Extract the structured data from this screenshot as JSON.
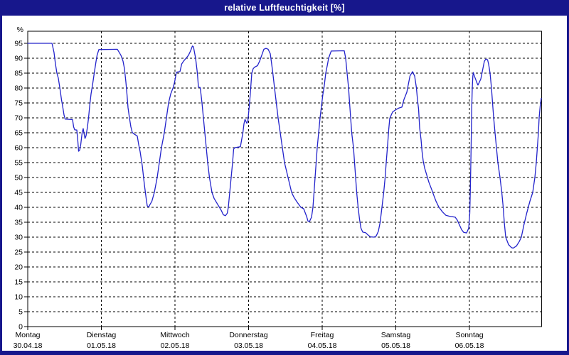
{
  "window": {
    "title": "relative Luftfeuchtigkeit [%]"
  },
  "colors": {
    "chrome": "#17178c",
    "title_text": "#ffffff",
    "plot_background": "#ffffff",
    "grid": "#000000",
    "axis_text": "#000000",
    "line": "#2323cb"
  },
  "chart_data": {
    "type": "line",
    "title": "relative Luftfeuchtigkeit [%]",
    "ylabel": "%",
    "y_unit": "%",
    "ylim": [
      0,
      99
    ],
    "y_ticks": [
      0,
      5,
      10,
      15,
      20,
      25,
      30,
      35,
      40,
      45,
      50,
      55,
      60,
      65,
      70,
      75,
      80,
      85,
      90,
      95
    ],
    "grid": "dashed",
    "legend": "none",
    "x_days": [
      {
        "name": "Montag",
        "date": "30.04.18"
      },
      {
        "name": "Dienstag",
        "date": "01.05.18"
      },
      {
        "name": "Mittwoch",
        "date": "02.05.18"
      },
      {
        "name": "Donnerstag",
        "date": "03.05.18"
      },
      {
        "name": "Freitag",
        "date": "04.05.18"
      },
      {
        "name": "Samstag",
        "date": "05.05.18"
      },
      {
        "name": "Sonntag",
        "date": "06.05.18"
      }
    ],
    "x_range_days": [
      0,
      6.98
    ],
    "series": [
      {
        "name": "relative Luftfeuchtigkeit",
        "unit": "%",
        "x_unit": "days since 30.04.18 00:00",
        "points": [
          [
            0.0,
            95
          ],
          [
            0.329,
            95
          ],
          [
            0.357,
            92
          ],
          [
            0.377,
            88
          ],
          [
            0.396,
            85
          ],
          [
            0.415,
            83.3
          ],
          [
            0.43,
            81
          ],
          [
            0.444,
            78.6
          ],
          [
            0.459,
            76
          ],
          [
            0.473,
            74
          ],
          [
            0.493,
            71
          ],
          [
            0.507,
            69.6
          ],
          [
            0.609,
            69.4
          ],
          [
            0.623,
            67
          ],
          [
            0.638,
            66
          ],
          [
            0.667,
            65.9
          ],
          [
            0.681,
            62
          ],
          [
            0.691,
            58.8
          ],
          [
            0.705,
            59.2
          ],
          [
            0.72,
            61
          ],
          [
            0.739,
            65.1
          ],
          [
            0.754,
            66.4
          ],
          [
            0.763,
            65
          ],
          [
            0.778,
            63.1
          ],
          [
            0.792,
            64
          ],
          [
            0.812,
            67
          ],
          [
            0.826,
            70
          ],
          [
            0.841,
            73.8
          ],
          [
            0.86,
            78
          ],
          [
            0.884,
            81.7
          ],
          [
            0.903,
            85
          ],
          [
            0.928,
            88.9
          ],
          [
            0.942,
            91
          ],
          [
            0.966,
            92.9
          ],
          [
            1.217,
            93
          ],
          [
            1.266,
            91
          ],
          [
            1.295,
            89
          ],
          [
            1.314,
            86.5
          ],
          [
            1.333,
            82
          ],
          [
            1.348,
            78
          ],
          [
            1.362,
            73.4
          ],
          [
            1.382,
            70
          ],
          [
            1.401,
            67
          ],
          [
            1.42,
            65.1
          ],
          [
            1.449,
            64.5
          ],
          [
            1.488,
            63.9
          ],
          [
            1.507,
            61
          ],
          [
            1.527,
            58.7
          ],
          [
            1.556,
            54
          ],
          [
            1.585,
            47.6
          ],
          [
            1.609,
            43
          ],
          [
            1.623,
            40.5
          ],
          [
            1.643,
            40.1
          ],
          [
            1.662,
            41
          ],
          [
            1.686,
            42
          ],
          [
            1.72,
            45
          ],
          [
            1.758,
            50
          ],
          [
            1.787,
            55
          ],
          [
            1.816,
            60
          ],
          [
            1.855,
            65
          ],
          [
            1.884,
            70
          ],
          [
            1.913,
            75
          ],
          [
            1.942,
            78
          ],
          [
            1.976,
            80.2
          ],
          [
            1.995,
            82
          ],
          [
            2.019,
            85.3
          ],
          [
            2.068,
            85.5
          ],
          [
            2.092,
            88.1
          ],
          [
            2.116,
            89
          ],
          [
            2.155,
            90.1
          ],
          [
            2.184,
            91
          ],
          [
            2.213,
            92.5
          ],
          [
            2.237,
            94.1
          ],
          [
            2.251,
            93.8
          ],
          [
            2.28,
            90
          ],
          [
            2.304,
            85
          ],
          [
            2.319,
            80.3
          ],
          [
            2.343,
            80.2
          ],
          [
            2.367,
            75
          ],
          [
            2.386,
            70
          ],
          [
            2.406,
            65
          ],
          [
            2.425,
            60
          ],
          [
            2.444,
            55
          ],
          [
            2.469,
            50
          ],
          [
            2.502,
            45
          ],
          [
            2.531,
            43
          ],
          [
            2.58,
            41
          ],
          [
            2.628,
            39
          ],
          [
            2.657,
            37.5
          ],
          [
            2.686,
            37.2
          ],
          [
            2.71,
            38
          ],
          [
            2.725,
            40
          ],
          [
            2.744,
            45
          ],
          [
            2.763,
            50
          ],
          [
            2.783,
            55
          ],
          [
            2.797,
            59.5
          ],
          [
            2.812,
            60
          ],
          [
            2.889,
            60.3
          ],
          [
            2.908,
            63
          ],
          [
            2.923,
            65
          ],
          [
            2.937,
            68
          ],
          [
            2.952,
            69.5
          ],
          [
            2.976,
            68.2
          ],
          [
            2.99,
            69
          ],
          [
            3.014,
            75
          ],
          [
            3.029,
            80
          ],
          [
            3.043,
            85
          ],
          [
            3.063,
            86.5
          ],
          [
            3.082,
            87
          ],
          [
            3.121,
            87.5
          ],
          [
            3.15,
            89
          ],
          [
            3.179,
            91
          ],
          [
            3.208,
            93
          ],
          [
            3.237,
            93.3
          ],
          [
            3.266,
            93
          ],
          [
            3.295,
            91.5
          ],
          [
            3.314,
            88
          ],
          [
            3.329,
            85
          ],
          [
            3.353,
            80
          ],
          [
            3.377,
            75
          ],
          [
            3.401,
            70
          ],
          [
            3.43,
            65
          ],
          [
            3.459,
            60
          ],
          [
            3.488,
            55
          ],
          [
            3.536,
            50
          ],
          [
            3.585,
            45
          ],
          [
            3.614,
            43.5
          ],
          [
            3.652,
            42
          ],
          [
            3.71,
            40
          ],
          [
            3.749,
            39.5
          ],
          [
            3.787,
            37
          ],
          [
            3.807,
            35.4
          ],
          [
            3.826,
            35.2
          ],
          [
            3.855,
            36.7
          ],
          [
            3.874,
            40
          ],
          [
            3.889,
            45
          ],
          [
            3.903,
            50
          ],
          [
            3.918,
            55
          ],
          [
            3.932,
            60
          ],
          [
            3.952,
            65
          ],
          [
            3.971,
            70
          ],
          [
            3.995,
            75
          ],
          [
            4.01,
            78
          ],
          [
            4.024,
            80
          ],
          [
            4.048,
            85
          ],
          [
            4.072,
            88
          ],
          [
            4.087,
            90
          ],
          [
            4.123,
            92.4
          ],
          [
            4.3,
            92.5
          ],
          [
            4.319,
            90
          ],
          [
            4.338,
            85
          ],
          [
            4.358,
            80
          ],
          [
            4.372,
            75
          ],
          [
            4.386,
            70
          ],
          [
            4.401,
            65
          ],
          [
            4.411,
            63
          ],
          [
            4.425,
            60
          ],
          [
            4.44,
            55
          ],
          [
            4.454,
            50
          ],
          [
            4.469,
            45
          ],
          [
            4.488,
            40
          ],
          [
            4.507,
            36
          ],
          [
            4.527,
            33
          ],
          [
            4.551,
            31.7
          ],
          [
            4.589,
            31.5
          ],
          [
            4.628,
            30.6
          ],
          [
            4.657,
            30.1
          ],
          [
            4.705,
            30
          ],
          [
            4.734,
            30.4
          ],
          [
            4.763,
            32
          ],
          [
            4.787,
            35
          ],
          [
            4.812,
            40
          ],
          [
            4.836,
            45
          ],
          [
            4.855,
            50
          ],
          [
            4.87,
            55
          ],
          [
            4.879,
            58
          ],
          [
            4.889,
            61
          ],
          [
            4.903,
            66
          ],
          [
            4.918,
            69.8
          ],
          [
            4.957,
            72
          ],
          [
            5.005,
            72.8
          ],
          [
            5.043,
            73.3
          ],
          [
            5.082,
            73.6
          ],
          [
            5.111,
            76.2
          ],
          [
            5.15,
            78.6
          ],
          [
            5.174,
            81.7
          ],
          [
            5.193,
            84.1
          ],
          [
            5.227,
            85.5
          ],
          [
            5.256,
            84
          ],
          [
            5.28,
            80
          ],
          [
            5.295,
            76
          ],
          [
            5.309,
            73
          ],
          [
            5.324,
            66.7
          ],
          [
            5.343,
            62.7
          ],
          [
            5.357,
            58.7
          ],
          [
            5.372,
            55.6
          ],
          [
            5.391,
            53.2
          ],
          [
            5.42,
            50.8
          ],
          [
            5.449,
            48.4
          ],
          [
            5.487,
            46
          ],
          [
            5.516,
            44
          ],
          [
            5.545,
            42.1
          ],
          [
            5.585,
            40.1
          ],
          [
            5.633,
            38.5
          ],
          [
            5.681,
            37.3
          ],
          [
            5.729,
            37
          ],
          [
            5.807,
            36.7
          ],
          [
            5.836,
            35.7
          ],
          [
            5.865,
            34.1
          ],
          [
            5.894,
            32.5
          ],
          [
            5.923,
            31.6
          ],
          [
            5.961,
            31.4
          ],
          [
            5.99,
            33
          ],
          [
            6.005,
            38
          ],
          [
            6.012,
            45
          ],
          [
            6.019,
            55
          ],
          [
            6.026,
            65
          ],
          [
            6.032,
            74
          ],
          [
            6.039,
            80
          ],
          [
            6.046,
            84
          ],
          [
            6.053,
            85.2
          ],
          [
            6.068,
            84
          ],
          [
            6.106,
            81.5
          ],
          [
            6.116,
            81
          ],
          [
            6.155,
            83
          ],
          [
            6.179,
            86
          ],
          [
            6.203,
            89
          ],
          [
            6.222,
            89.7
          ],
          [
            6.246,
            89.5
          ],
          [
            6.261,
            88
          ],
          [
            6.28,
            85
          ],
          [
            6.3,
            80
          ],
          [
            6.314,
            75
          ],
          [
            6.329,
            70
          ],
          [
            6.348,
            65
          ],
          [
            6.367,
            60
          ],
          [
            6.386,
            55
          ],
          [
            6.415,
            50
          ],
          [
            6.44,
            45
          ],
          [
            6.459,
            40
          ],
          [
            6.473,
            35
          ],
          [
            6.493,
            30
          ],
          [
            6.531,
            27.5
          ],
          [
            6.57,
            26.5
          ],
          [
            6.594,
            26.3
          ],
          [
            6.638,
            27
          ],
          [
            6.676,
            28.5
          ],
          [
            6.705,
            30
          ],
          [
            6.739,
            34
          ],
          [
            6.778,
            38
          ],
          [
            6.821,
            42
          ],
          [
            6.86,
            45
          ],
          [
            6.889,
            50
          ],
          [
            6.908,
            55
          ],
          [
            6.923,
            60
          ],
          [
            6.937,
            65
          ],
          [
            6.947,
            70
          ],
          [
            6.961,
            74
          ],
          [
            6.976,
            76.5
          ]
        ]
      }
    ]
  }
}
